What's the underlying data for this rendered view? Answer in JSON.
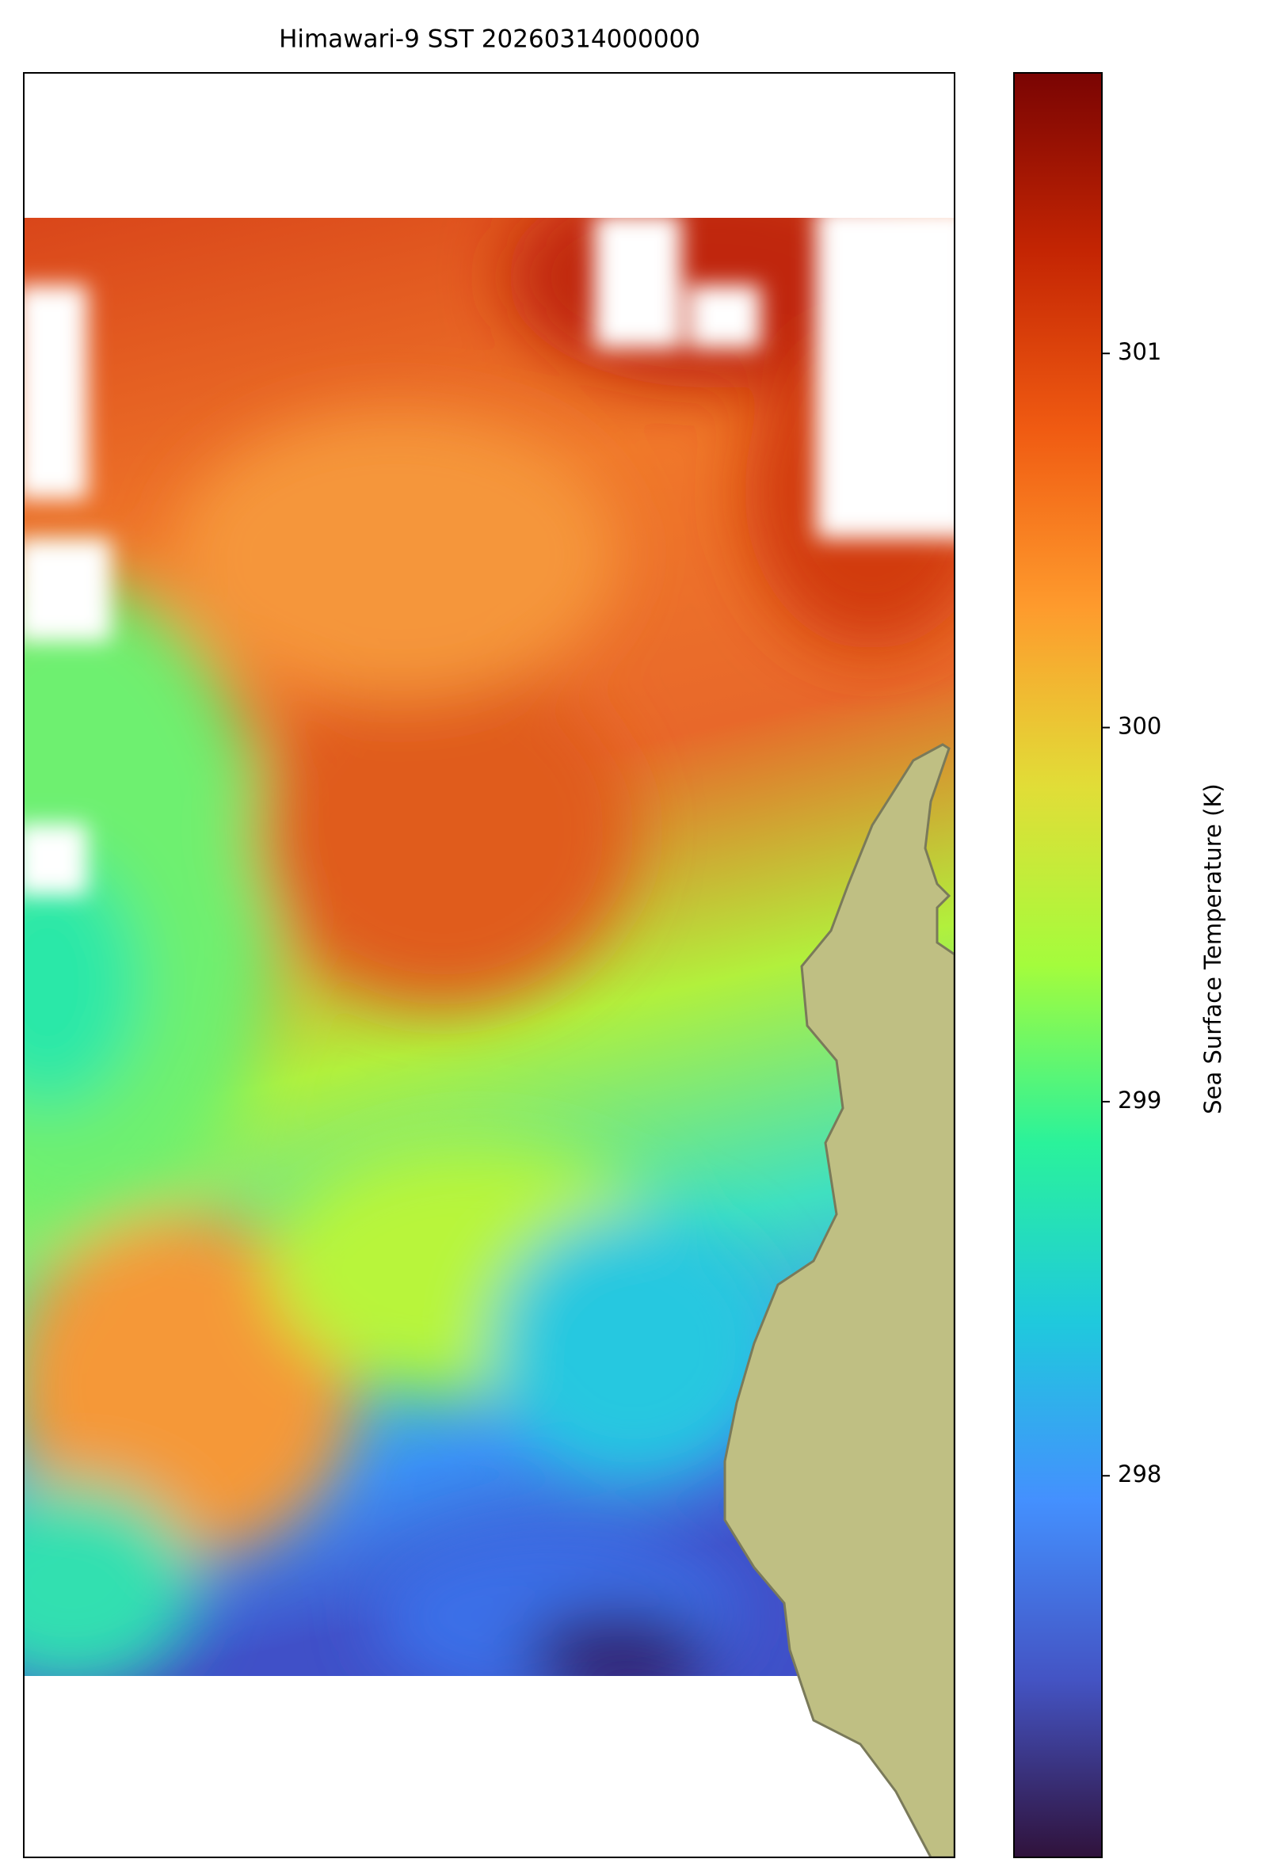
{
  "map": {
    "title": "Himawari-9 SST 20260314000000",
    "colorbar": {
      "label": "Sea Surface Temperature (K)",
      "colormap": "turbo",
      "lim": [
        296.98,
        301.75
      ],
      "ticks": [
        298,
        299,
        300,
        301
      ]
    }
  }
}
